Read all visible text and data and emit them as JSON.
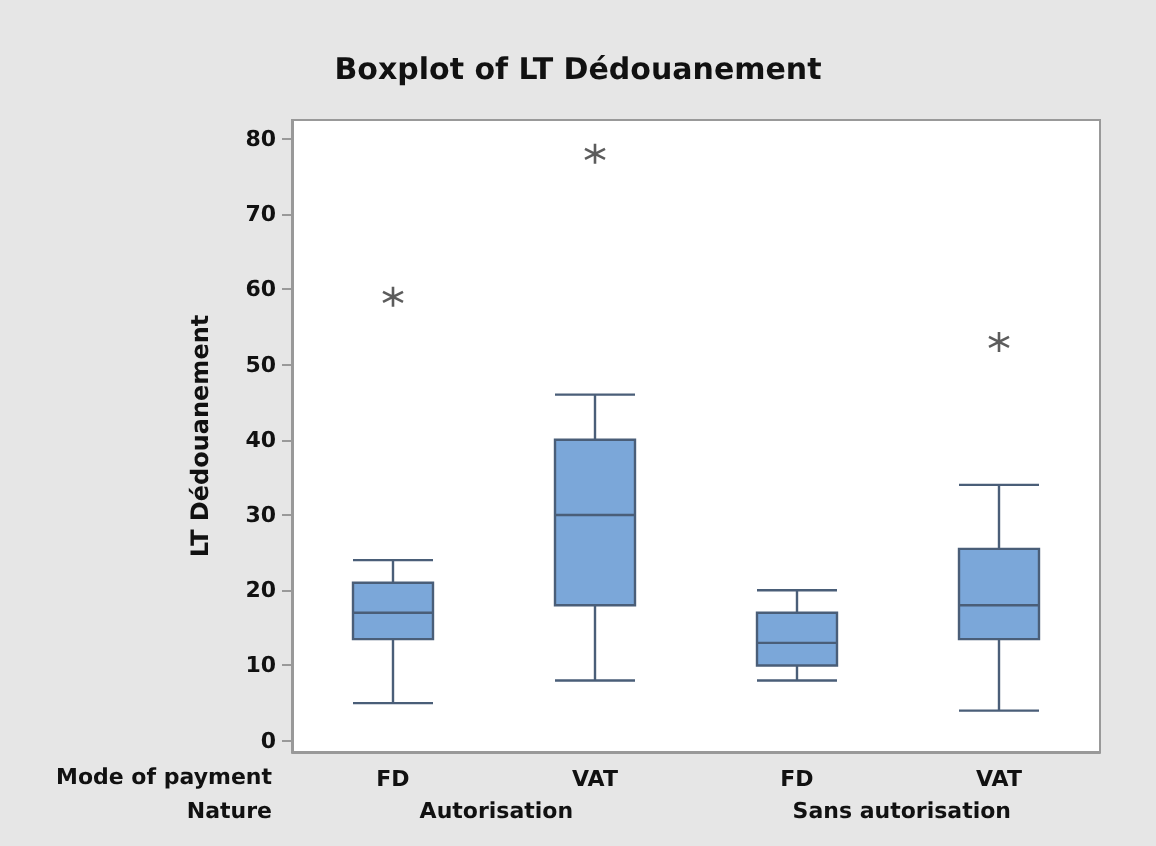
{
  "chart_data": {
    "type": "box",
    "title": "Boxplot of LT Dédouanement",
    "ylabel": "LT Dédouanement",
    "categories": [
      "FD",
      "VAT",
      "FD",
      "VAT"
    ],
    "color": "#7ba7d9",
    "boxes": [
      {
        "low": 5,
        "q1": 13.5,
        "median": 17,
        "q3": 21,
        "high": 24,
        "outliers": [
          59
        ]
      },
      {
        "low": 8,
        "q1": 18,
        "median": 30,
        "q3": 40,
        "high": 46,
        "outliers": [
          78
        ]
      },
      {
        "low": 8,
        "q1": 10,
        "median": 13,
        "q3": 17,
        "high": 20
      },
      {
        "low": 4,
        "q1": 13.5,
        "median": 18,
        "q3": 25.5,
        "high": 34,
        "outliers": [
          53
        ]
      }
    ],
    "ylim": [
      -1.5,
      82.5
    ],
    "yticks": [
      0,
      10,
      20,
      30,
      40,
      50,
      60,
      70,
      80
    ],
    "grid": false,
    "annotations": [
      "Mode of payment",
      "Nature",
      "Autorisation",
      "Sans autorisation"
    ]
  }
}
